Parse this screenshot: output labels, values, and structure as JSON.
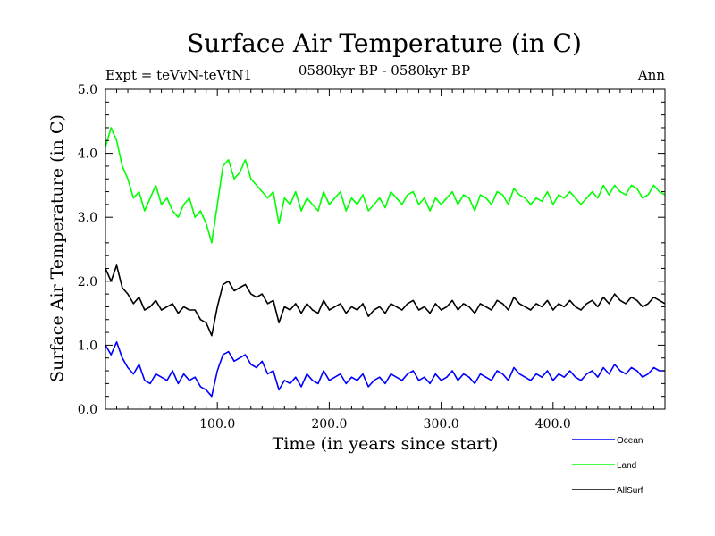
{
  "chart_data": {
    "type": "line",
    "title": "Surface Air Temperature (in C)",
    "subtitle": "0580kyr BP - 0580kyr BP",
    "left_label": "Expt = teVvN-teVtN1",
    "right_label": "Ann",
    "xlabel": "Time (in years since start)",
    "ylabel": "Surface Air Temperature (in C)",
    "xlim": [
      0,
      500
    ],
    "ylim": [
      0,
      5
    ],
    "xticks": [
      100,
      200,
      300,
      400
    ],
    "xtick_labels": [
      "100.0",
      "200.0",
      "300.0",
      "400.0"
    ],
    "yticks": [
      0,
      1,
      2,
      3,
      4,
      5
    ],
    "ytick_labels": [
      "0.0",
      "1.0",
      "2.0",
      "3.0",
      "4.0",
      "5.0"
    ],
    "grid": false,
    "legend_position": "bottom-right",
    "x": [
      0,
      5,
      10,
      15,
      20,
      25,
      30,
      35,
      40,
      45,
      50,
      55,
      60,
      65,
      70,
      75,
      80,
      85,
      90,
      95,
      100,
      105,
      110,
      115,
      120,
      125,
      130,
      135,
      140,
      145,
      150,
      155,
      160,
      165,
      170,
      175,
      180,
      185,
      190,
      195,
      200,
      205,
      210,
      215,
      220,
      225,
      230,
      235,
      240,
      245,
      250,
      255,
      260,
      265,
      270,
      275,
      280,
      285,
      290,
      295,
      300,
      305,
      310,
      315,
      320,
      325,
      330,
      335,
      340,
      345,
      350,
      355,
      360,
      365,
      370,
      375,
      380,
      385,
      390,
      395,
      400,
      405,
      410,
      415,
      420,
      425,
      430,
      435,
      440,
      445,
      450,
      455,
      460,
      465,
      470,
      475,
      480,
      485,
      490,
      495,
      500
    ],
    "series": [
      {
        "name": "Ocean",
        "color": "#0000ff",
        "values": [
          1.0,
          0.85,
          1.05,
          0.8,
          0.65,
          0.55,
          0.7,
          0.45,
          0.4,
          0.55,
          0.5,
          0.45,
          0.6,
          0.4,
          0.55,
          0.45,
          0.5,
          0.35,
          0.3,
          0.2,
          0.6,
          0.85,
          0.9,
          0.75,
          0.8,
          0.85,
          0.7,
          0.65,
          0.75,
          0.55,
          0.6,
          0.3,
          0.45,
          0.4,
          0.5,
          0.35,
          0.55,
          0.45,
          0.4,
          0.6,
          0.45,
          0.5,
          0.55,
          0.4,
          0.5,
          0.45,
          0.55,
          0.35,
          0.45,
          0.5,
          0.4,
          0.55,
          0.5,
          0.45,
          0.55,
          0.6,
          0.45,
          0.5,
          0.4,
          0.55,
          0.45,
          0.5,
          0.6,
          0.45,
          0.55,
          0.5,
          0.4,
          0.55,
          0.5,
          0.45,
          0.6,
          0.55,
          0.45,
          0.65,
          0.55,
          0.5,
          0.45,
          0.55,
          0.5,
          0.6,
          0.45,
          0.55,
          0.5,
          0.6,
          0.5,
          0.45,
          0.55,
          0.6,
          0.5,
          0.65,
          0.55,
          0.7,
          0.6,
          0.55,
          0.65,
          0.6,
          0.5,
          0.55,
          0.65,
          0.6,
          0.6
        ]
      },
      {
        "name": "Land",
        "color": "#00ff00",
        "values": [
          4.1,
          4.4,
          4.2,
          3.8,
          3.6,
          3.3,
          3.4,
          3.1,
          3.3,
          3.5,
          3.2,
          3.3,
          3.1,
          3.0,
          3.2,
          3.3,
          3.0,
          3.1,
          2.9,
          2.6,
          3.2,
          3.8,
          3.9,
          3.6,
          3.7,
          3.9,
          3.6,
          3.5,
          3.4,
          3.3,
          3.4,
          2.9,
          3.3,
          3.2,
          3.4,
          3.1,
          3.3,
          3.2,
          3.1,
          3.4,
          3.2,
          3.3,
          3.4,
          3.1,
          3.3,
          3.2,
          3.35,
          3.1,
          3.2,
          3.3,
          3.15,
          3.4,
          3.3,
          3.2,
          3.35,
          3.4,
          3.2,
          3.3,
          3.1,
          3.3,
          3.2,
          3.3,
          3.4,
          3.2,
          3.35,
          3.3,
          3.1,
          3.35,
          3.3,
          3.2,
          3.4,
          3.35,
          3.2,
          3.45,
          3.35,
          3.3,
          3.2,
          3.3,
          3.25,
          3.4,
          3.2,
          3.35,
          3.3,
          3.4,
          3.3,
          3.2,
          3.3,
          3.4,
          3.3,
          3.5,
          3.35,
          3.5,
          3.4,
          3.35,
          3.5,
          3.45,
          3.3,
          3.35,
          3.5,
          3.4,
          3.35
        ]
      },
      {
        "name": "AllSurf",
        "color": "#000000",
        "values": [
          2.2,
          2.0,
          2.25,
          1.9,
          1.8,
          1.65,
          1.75,
          1.55,
          1.6,
          1.7,
          1.55,
          1.6,
          1.65,
          1.5,
          1.6,
          1.55,
          1.55,
          1.4,
          1.35,
          1.15,
          1.6,
          1.95,
          2.0,
          1.85,
          1.9,
          1.95,
          1.8,
          1.75,
          1.8,
          1.65,
          1.7,
          1.35,
          1.6,
          1.55,
          1.65,
          1.5,
          1.65,
          1.55,
          1.5,
          1.7,
          1.55,
          1.6,
          1.65,
          1.5,
          1.6,
          1.55,
          1.65,
          1.45,
          1.55,
          1.6,
          1.5,
          1.65,
          1.6,
          1.55,
          1.65,
          1.7,
          1.55,
          1.6,
          1.5,
          1.65,
          1.55,
          1.6,
          1.7,
          1.55,
          1.65,
          1.6,
          1.5,
          1.65,
          1.6,
          1.55,
          1.7,
          1.65,
          1.55,
          1.75,
          1.65,
          1.6,
          1.55,
          1.65,
          1.6,
          1.7,
          1.55,
          1.65,
          1.6,
          1.7,
          1.6,
          1.55,
          1.65,
          1.7,
          1.6,
          1.75,
          1.65,
          1.8,
          1.7,
          1.65,
          1.75,
          1.7,
          1.6,
          1.65,
          1.75,
          1.7,
          1.65
        ]
      }
    ]
  }
}
